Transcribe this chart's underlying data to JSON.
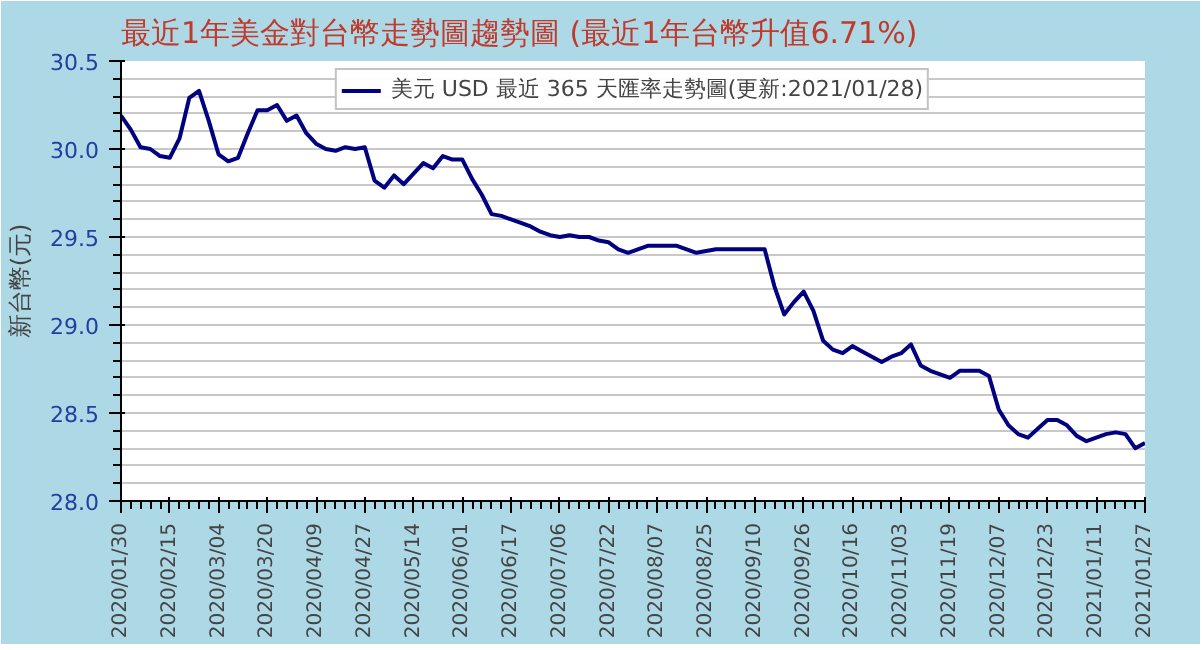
{
  "chart_data": {
    "type": "line",
    "title": "最近1年美金對台幣走勢圖趨勢圖 (最近1年台幣升值6.71%)",
    "ylabel": "新台幣(元)",
    "categories": [
      "2020/01/30",
      null,
      null,
      null,
      null,
      "2020/02/15",
      null,
      null,
      null,
      null,
      "2020/03/04",
      null,
      null,
      null,
      null,
      "2020/03/20",
      null,
      null,
      null,
      null,
      "2020/04/09",
      null,
      null,
      null,
      null,
      "2020/04/27",
      null,
      null,
      null,
      null,
      "2020/05/14",
      null,
      null,
      null,
      null,
      "2020/06/01",
      null,
      null,
      null,
      null,
      "2020/06/17",
      null,
      null,
      null,
      null,
      "2020/07/06",
      null,
      null,
      null,
      null,
      "2020/07/22",
      null,
      null,
      null,
      null,
      "2020/08/07",
      null,
      null,
      null,
      null,
      "2020/08/25",
      null,
      null,
      null,
      null,
      "2020/09/10",
      null,
      null,
      null,
      null,
      "2020/09/26",
      null,
      null,
      null,
      null,
      "2020/10/16",
      null,
      null,
      null,
      null,
      "2020/11/03",
      null,
      null,
      null,
      null,
      "2020/11/19",
      null,
      null,
      null,
      null,
      "2020/12/07",
      null,
      null,
      null,
      null,
      "2020/12/23",
      null,
      null,
      null,
      null,
      "2021/01/11",
      null,
      null,
      null,
      null,
      "2021/01/27"
    ],
    "series": [
      {
        "name": "美元 USD 最近 365 天匯率走勢圖(更新:2021/01/28)",
        "color": "#000080",
        "values": [
          30.19,
          30.11,
          30.01,
          30.0,
          29.96,
          29.95,
          30.06,
          30.29,
          30.33,
          30.16,
          29.97,
          29.93,
          29.95,
          30.09,
          30.22,
          30.22,
          30.25,
          30.16,
          30.19,
          30.09,
          30.03,
          30.0,
          29.99,
          30.01,
          30.0,
          30.01,
          29.82,
          29.78,
          29.85,
          29.8,
          29.86,
          29.92,
          29.89,
          29.96,
          29.94,
          29.94,
          29.83,
          29.74,
          29.63,
          29.62,
          29.6,
          29.58,
          29.56,
          29.53,
          29.51,
          29.5,
          29.51,
          29.5,
          29.5,
          29.48,
          29.47,
          29.43,
          29.41,
          29.43,
          29.45,
          29.45,
          29.45,
          29.45,
          29.43,
          29.41,
          29.42,
          29.43,
          29.43,
          29.43,
          29.43,
          29.43,
          29.43,
          29.22,
          29.06,
          29.13,
          29.19,
          29.08,
          28.91,
          28.86,
          28.84,
          28.88,
          28.85,
          28.82,
          28.79,
          28.82,
          28.84,
          28.89,
          28.77,
          28.74,
          28.72,
          28.7,
          28.74,
          28.74,
          28.74,
          28.71,
          28.52,
          28.43,
          28.38,
          28.36,
          28.41,
          28.46,
          28.46,
          28.43,
          28.37,
          28.34,
          28.36,
          28.38,
          28.39,
          28.38,
          28.3,
          28.33
        ]
      }
    ],
    "ylim": [
      28.0,
      30.5
    ],
    "yticks": [
      {
        "value": 28.0,
        "label": "28.0"
      },
      {
        "value": 28.1,
        "label": null
      },
      {
        "value": 28.2,
        "label": null
      },
      {
        "value": 28.3,
        "label": null
      },
      {
        "value": 28.4,
        "label": null
      },
      {
        "value": 28.5,
        "label": "28.5"
      },
      {
        "value": 28.6,
        "label": null
      },
      {
        "value": 28.7,
        "label": null
      },
      {
        "value": 28.8,
        "label": null
      },
      {
        "value": 28.9,
        "label": null
      },
      {
        "value": 29.0,
        "label": "29.0"
      },
      {
        "value": 29.1,
        "label": null
      },
      {
        "value": 29.2,
        "label": null
      },
      {
        "value": 29.3,
        "label": null
      },
      {
        "value": 29.4,
        "label": null
      },
      {
        "value": 29.5,
        "label": "29.5"
      },
      {
        "value": 29.6,
        "label": null
      },
      {
        "value": 29.7,
        "label": null
      },
      {
        "value": 29.8,
        "label": null
      },
      {
        "value": 29.9,
        "label": null
      },
      {
        "value": 30.0,
        "label": "30.0"
      },
      {
        "value": 30.1,
        "label": null
      },
      {
        "value": 30.2,
        "label": null
      },
      {
        "value": 30.3,
        "label": null
      },
      {
        "value": 30.4,
        "label": null
      },
      {
        "value": 30.5,
        "label": "30.5"
      }
    ],
    "grid": "y",
    "legend": "top",
    "marker": "none",
    "line_style": "solid"
  }
}
